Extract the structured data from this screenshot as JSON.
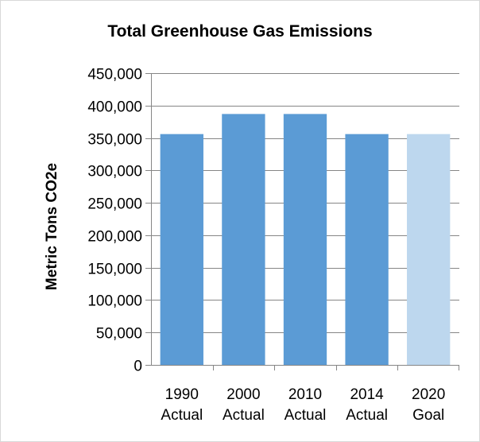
{
  "chart_data": {
    "type": "bar",
    "title": "Total Greenhouse Gas Emissions",
    "xlabel": "",
    "ylabel": "Metric Tons CO2e",
    "categories": [
      [
        "1990",
        "Actual"
      ],
      [
        "2000",
        "Actual"
      ],
      [
        "2010",
        "Actual"
      ],
      [
        "2014",
        "Actual"
      ],
      [
        "2020",
        "Goal"
      ]
    ],
    "values": [
      356000,
      387000,
      387000,
      356000,
      356000
    ],
    "bar_colors": [
      "#5b9bd5",
      "#5b9bd5",
      "#5b9bd5",
      "#5b9bd5",
      "#bdd7ee"
    ],
    "ylim": [
      0,
      450000
    ],
    "y_ticks": [
      0,
      50000,
      100000,
      150000,
      200000,
      250000,
      300000,
      350000,
      400000,
      450000
    ],
    "y_tick_labels": [
      "0",
      "50,000",
      "100,000",
      "150,000",
      "200,000",
      "250,000",
      "300,000",
      "350,000",
      "400,000",
      "450,000"
    ],
    "grid": true,
    "gridline_color": "#868686",
    "legend": "none"
  }
}
